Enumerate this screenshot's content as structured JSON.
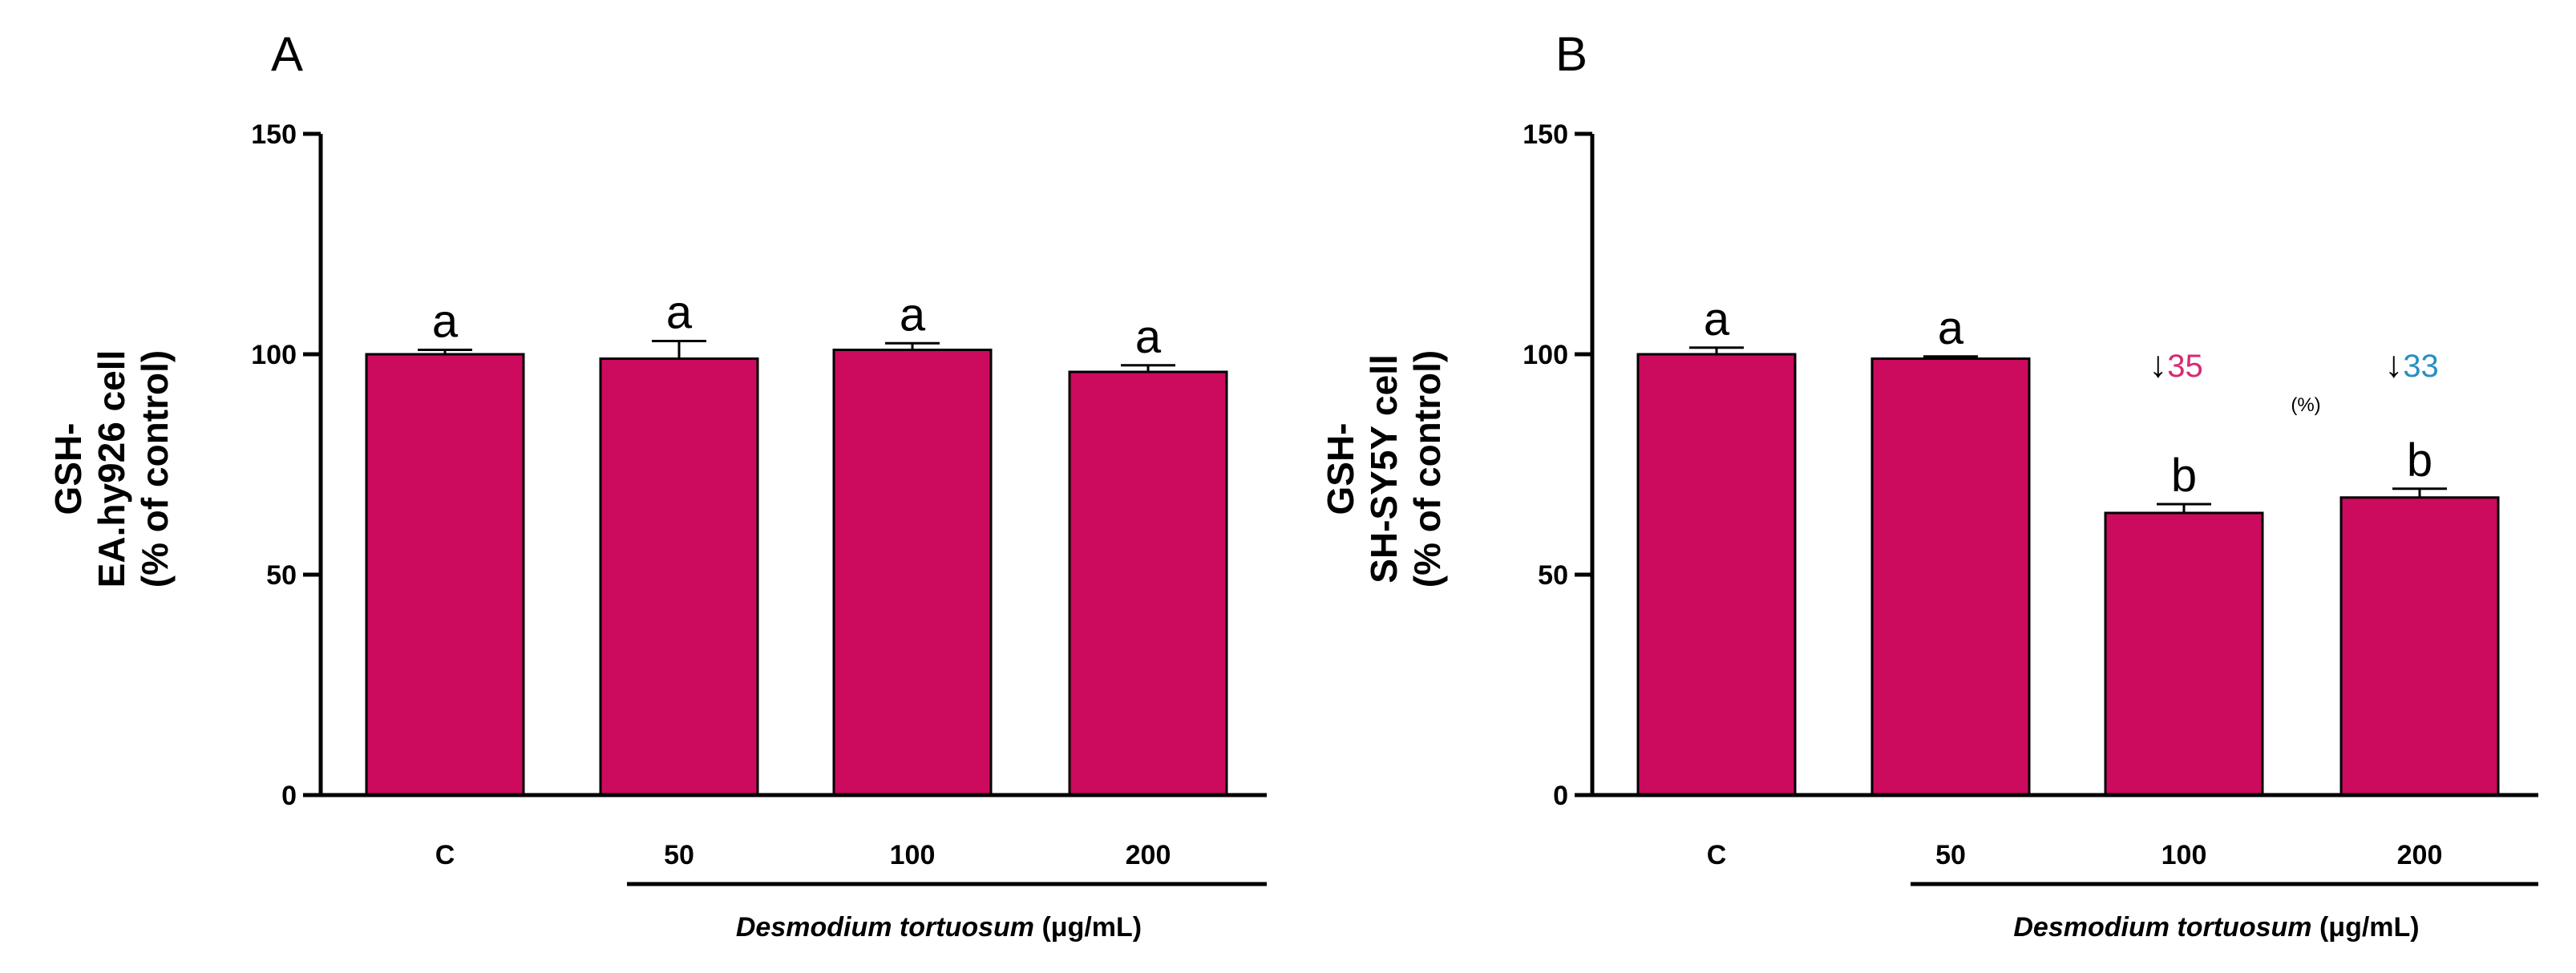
{
  "chart_data": [
    {
      "type": "bar",
      "panel_letter": "A",
      "title": "",
      "ylabel_lines": [
        "GSH-",
        "EA.hy926 cell",
        "(% of control)"
      ],
      "categories": [
        "C",
        "50",
        "100",
        "200"
      ],
      "values": [
        100,
        99,
        101,
        96
      ],
      "errors": [
        1,
        4,
        1.5,
        1.5
      ],
      "significance": [
        "a",
        "a",
        "a",
        "a"
      ],
      "ylim": [
        0,
        150
      ],
      "yticks": [
        0,
        50,
        100,
        150
      ],
      "group_label_italic": "Desmodium tortuosum",
      "group_label_unit": " (μg/mL)",
      "bar_color": "#cc0a5e",
      "grid": false,
      "annotations": []
    },
    {
      "type": "bar",
      "panel_letter": "B",
      "title": "",
      "ylabel_lines": [
        "GSH-",
        "SH-SY5Y cell",
        "(% of control)"
      ],
      "categories": [
        "C",
        "50",
        "100",
        "200"
      ],
      "values": [
        100,
        99,
        64,
        67.5
      ],
      "errors": [
        1.5,
        0.5,
        2,
        2
      ],
      "significance": [
        "a",
        "a",
        "b",
        "b"
      ],
      "ylim": [
        0,
        150
      ],
      "yticks": [
        0,
        50,
        100,
        150
      ],
      "group_label_italic": "Desmodium tortuosum",
      "group_label_unit": " (μg/mL)",
      "bar_color": "#cc0a5e",
      "grid": false,
      "annotations": [
        {
          "category_index": 2,
          "arrow": "↓",
          "text": "35",
          "color": "#d62a73"
        },
        {
          "category_index": 3,
          "arrow": "↓",
          "text": "33",
          "color": "#2a8fc0"
        }
      ],
      "annotation_unit": "(%)"
    }
  ]
}
